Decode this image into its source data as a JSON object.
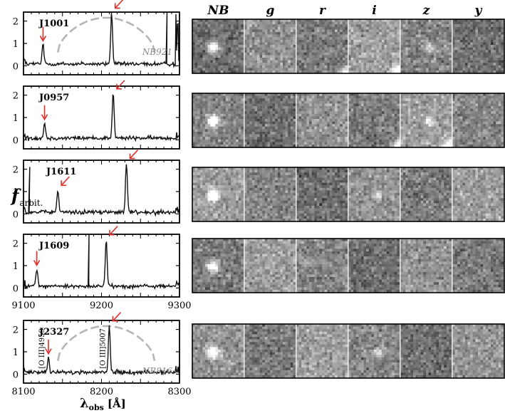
{
  "figure": {
    "y_axis_label_main": "f",
    "y_axis_label_sub": "arbit.",
    "band_headers": [
      "NB",
      "g",
      "r",
      "i",
      "z",
      "y"
    ],
    "spectra": [
      {
        "id": "J1001",
        "x_range": [
          9100,
          9300
        ],
        "y_ticks": [
          "2",
          "1",
          "0"
        ],
        "filter_label": "NB921",
        "filter_curve": true,
        "line_marks": [
          {
            "x": 9125,
            "peak": 0.9,
            "arrow": "down"
          },
          {
            "x": 9213,
            "peak": 2.3,
            "arrow": "diag"
          }
        ]
      },
      {
        "id": "J0957",
        "x_range": [
          9100,
          9300
        ],
        "y_ticks": [
          "2",
          "1",
          "0"
        ],
        "filter_label": "",
        "filter_curve": false,
        "line_marks": [
          {
            "x": 9127,
            "peak": 0.7,
            "arrow": "down"
          },
          {
            "x": 9215,
            "peak": 2.0,
            "arrow": "diag"
          }
        ]
      },
      {
        "id": "J1611",
        "x_range": [
          9100,
          9300
        ],
        "y_ticks": [
          "2",
          "1",
          "0"
        ],
        "filter_label": "",
        "filter_curve": false,
        "line_marks": [
          {
            "x": 9144,
            "peak": 1.0,
            "arrow": "diag"
          },
          {
            "x": 9232,
            "peak": 2.2,
            "arrow": "diag"
          }
        ]
      },
      {
        "id": "J1609",
        "x_range": [
          9100,
          9300
        ],
        "y_ticks": [
          "2",
          "1",
          "0"
        ],
        "filter_label": "",
        "filter_curve": false,
        "x_tick_labels": [
          "9100",
          "9200",
          "9300"
        ],
        "line_marks": [
          {
            "x": 9117,
            "peak": 0.8,
            "arrow": "down"
          },
          {
            "x": 9206,
            "peak": 2.1,
            "arrow": "diag"
          }
        ]
      },
      {
        "id": "J2327",
        "x_range": [
          8100,
          8300
        ],
        "y_ticks": [
          "2",
          "1",
          "0"
        ],
        "filter_label": "NB816",
        "filter_curve": true,
        "x_tick_labels": [
          "8100",
          "8200",
          "8300"
        ],
        "line_annotations": [
          "[O III]4959",
          "[O III]5007"
        ],
        "line_marks": [
          {
            "x": 8132,
            "peak": 0.7,
            "arrow": "down"
          },
          {
            "x": 8210,
            "peak": 2.1,
            "arrow": "diag"
          }
        ]
      }
    ],
    "x_axis_label": "λobs [Å]",
    "x_axis_label_main": "λ",
    "x_axis_label_sub": "obs",
    "x_axis_label_unit": "[Å]",
    "colors": {
      "spectrum": "#111111",
      "arrow": "#e0302a",
      "filter_curve": "#b5b5b5",
      "filter_label": "#8a8a8a"
    },
    "stamps": [
      {
        "object": "J1001",
        "bright_source_bands": [
          "NB",
          "z"
        ],
        "contaminant_bands": [
          "r",
          "i"
        ]
      },
      {
        "object": "J0957",
        "bright_source_bands": [
          "NB",
          "z"
        ],
        "contaminant_bands": [
          "i",
          "z"
        ]
      },
      {
        "object": "J1611",
        "bright_source_bands": [
          "NB",
          "i"
        ],
        "contaminant_bands": []
      },
      {
        "object": "J1609",
        "bright_source_bands": [
          "NB"
        ],
        "contaminant_bands": []
      },
      {
        "object": "J2327",
        "bright_source_bands": [
          "NB",
          "i"
        ],
        "contaminant_bands": []
      }
    ]
  }
}
